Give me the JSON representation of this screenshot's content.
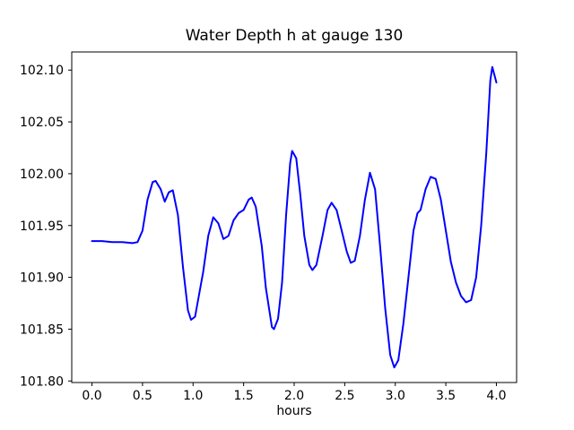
{
  "chart_data": {
    "type": "line",
    "title": "Water Depth h at gauge 130",
    "xlabel": "hours",
    "ylabel": "",
    "grid": false,
    "legend": false,
    "line_color": "#0000ff",
    "xlim": [
      -0.2,
      4.2
    ],
    "ylim": [
      101.7985,
      102.1175
    ],
    "xticks": [
      0.0,
      0.5,
      1.0,
      1.5,
      2.0,
      2.5,
      3.0,
      3.5,
      4.0
    ],
    "xtick_labels": [
      "0.0",
      "0.5",
      "1.0",
      "1.5",
      "2.0",
      "2.5",
      "3.0",
      "3.5",
      "4.0"
    ],
    "yticks": [
      101.8,
      101.85,
      101.9,
      101.95,
      102.0,
      102.05,
      102.1
    ],
    "ytick_labels": [
      "101.80",
      "101.85",
      "101.90",
      "101.95",
      "102.00",
      "102.05",
      "102.10"
    ],
    "series": [
      {
        "name": "h",
        "x": [
          0.0,
          0.1,
          0.2,
          0.3,
          0.4,
          0.45,
          0.5,
          0.55,
          0.6,
          0.63,
          0.68,
          0.72,
          0.76,
          0.8,
          0.85,
          0.9,
          0.95,
          0.98,
          1.02,
          1.1,
          1.15,
          1.2,
          1.25,
          1.3,
          1.35,
          1.4,
          1.45,
          1.5,
          1.55,
          1.58,
          1.62,
          1.68,
          1.72,
          1.78,
          1.8,
          1.84,
          1.88,
          1.92,
          1.96,
          1.98,
          2.02,
          2.06,
          2.1,
          2.15,
          2.18,
          2.22,
          2.28,
          2.33,
          2.37,
          2.42,
          2.47,
          2.52,
          2.56,
          2.6,
          2.65,
          2.7,
          2.75,
          2.8,
          2.85,
          2.9,
          2.95,
          2.99,
          3.03,
          3.08,
          3.13,
          3.18,
          3.22,
          3.25,
          3.3,
          3.35,
          3.4,
          3.45,
          3.5,
          3.55,
          3.6,
          3.65,
          3.7,
          3.75,
          3.8,
          3.85,
          3.9,
          3.94,
          3.96,
          4.0
        ],
        "y": [
          101.935,
          101.935,
          101.934,
          101.934,
          101.933,
          101.934,
          101.945,
          101.975,
          101.992,
          101.993,
          101.985,
          101.973,
          101.982,
          101.984,
          101.96,
          101.91,
          101.868,
          101.859,
          101.862,
          101.905,
          101.94,
          101.958,
          101.952,
          101.937,
          101.94,
          101.955,
          101.962,
          101.965,
          101.975,
          101.977,
          101.968,
          101.93,
          101.89,
          101.852,
          101.85,
          101.86,
          101.895,
          101.96,
          102.01,
          102.022,
          102.015,
          101.98,
          101.94,
          101.912,
          101.907,
          101.912,
          101.94,
          101.965,
          101.972,
          101.965,
          101.945,
          101.925,
          101.914,
          101.916,
          101.94,
          101.975,
          102.001,
          101.985,
          101.93,
          101.87,
          101.825,
          101.813,
          101.82,
          101.855,
          101.9,
          101.945,
          101.962,
          101.965,
          101.985,
          101.997,
          101.995,
          101.975,
          101.945,
          101.915,
          101.895,
          101.882,
          101.876,
          101.878,
          101.9,
          101.95,
          102.02,
          102.09,
          102.103,
          102.088
        ]
      }
    ]
  }
}
